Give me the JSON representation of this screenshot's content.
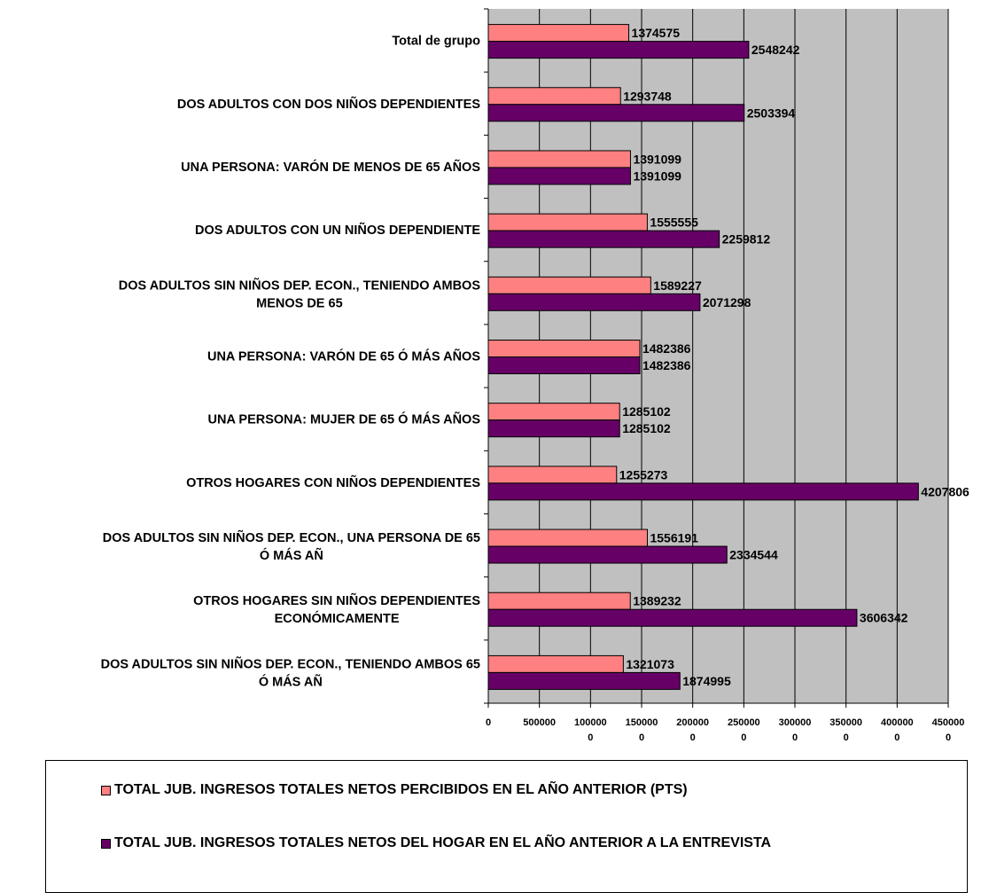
{
  "chart_data": {
    "type": "bar",
    "orientation": "horizontal",
    "categories": [
      "Total de grupo",
      "DOS ADULTOS CON DOS NIÑOS DEPENDIENTES",
      "UNA PERSONA: VARÓN DE MENOS DE 65 AÑOS",
      "DOS ADULTOS CON UN NIÑOS DEPENDIENTE",
      [
        "DOS ADULTOS SIN NIÑOS DEP. ECON., TENIENDO AMBOS",
        "MENOS DE 65"
      ],
      "UNA PERSONA: VARÓN DE 65 Ó MÁS AÑOS",
      "UNA PERSONA: MUJER DE 65 Ó MÁS AÑOS",
      "OTROS HOGARES CON NIÑOS DEPENDIENTES",
      [
        "DOS ADULTOS SIN NIÑOS DEP. ECON., UNA PERSONA DE 65",
        "Ó MÁS AÑ"
      ],
      [
        "OTROS HOGARES SIN NIÑOS DEPENDIENTES",
        "ECONÓMICAMENTE"
      ],
      [
        "DOS ADULTOS SIN NIÑOS DEP. ECON., TENIENDO AMBOS 65",
        "Ó MÁS AÑ"
      ]
    ],
    "series": [
      {
        "name": "TOTAL JUB. INGRESOS TOTALES NETOS PERCIBIDOS EN EL AÑO ANTERIOR (PTS)",
        "color": "#FF8080",
        "values": [
          1374575,
          1293748,
          1391099,
          1555555,
          1589227,
          1482386,
          1285102,
          1255273,
          1556191,
          1389232,
          1321073
        ]
      },
      {
        "name": "TOTAL JUB. INGRESOS TOTALES NETOS DEL HOGAR EN EL AÑO ANTERIOR A LA ENTREVISTA",
        "color": "#660066",
        "values": [
          2548242,
          2503394,
          1391099,
          2259812,
          2071298,
          1482386,
          1285102,
          4207806,
          2334544,
          3606342,
          1874995
        ]
      }
    ],
    "xlim": [
      0,
      4500000
    ],
    "x_ticks": [
      [
        "0"
      ],
      [
        "500000"
      ],
      [
        "100000",
        "0"
      ],
      [
        "150000",
        "0"
      ],
      [
        "200000",
        "0"
      ],
      [
        "250000",
        "0"
      ],
      [
        "300000",
        "0"
      ],
      [
        "350000",
        "0"
      ],
      [
        "400000",
        "0"
      ],
      [
        "450000",
        "0"
      ]
    ],
    "x_tick_values": [
      0,
      500000,
      1000000,
      1500000,
      2000000,
      2500000,
      3000000,
      3500000,
      4000000,
      4500000
    ],
    "grid": true,
    "plot_background": "#C0C0C0",
    "legend_position": "bottom",
    "title": "",
    "xlabel": "",
    "ylabel": ""
  }
}
